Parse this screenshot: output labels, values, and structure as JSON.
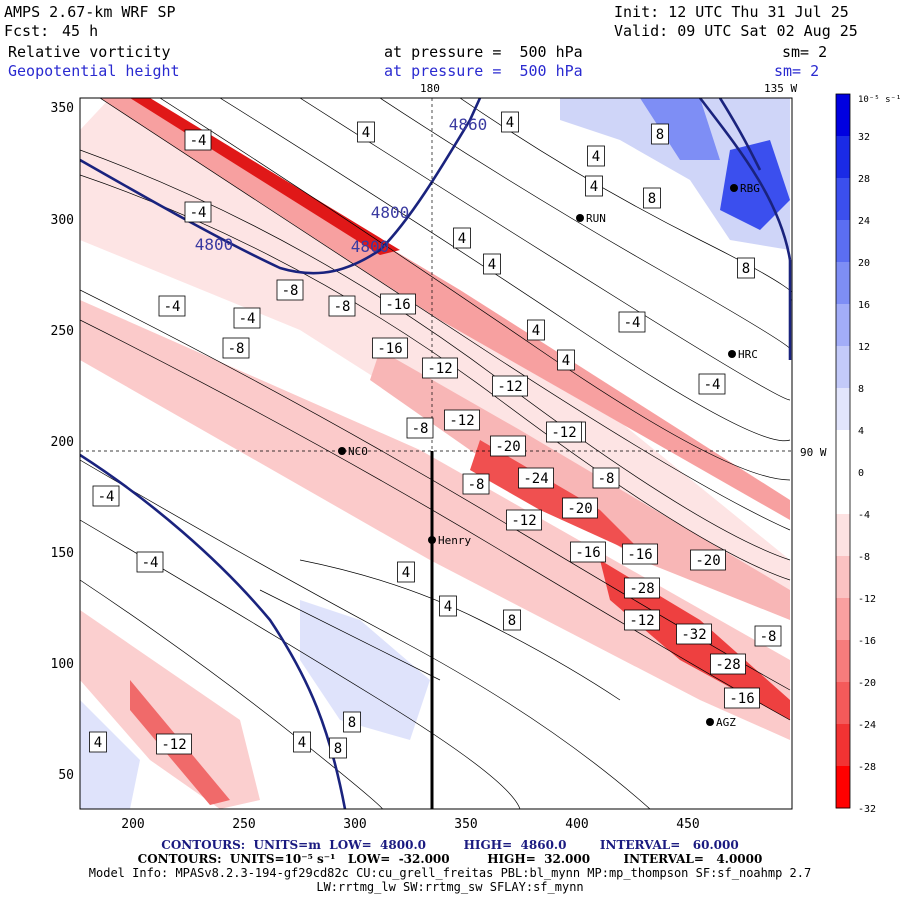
{
  "header": {
    "model": "AMPS 2.67-km WRF SP",
    "init": "Init: 12 UTC Thu 31 Jul 25",
    "fcst_label": "Fcst:",
    "fcst_value": "45 h",
    "valid": "Valid: 09 UTC Sat 02 Aug 25",
    "field1": "Relative vorticity",
    "field1_pressure": "at pressure =  500 hPa",
    "field1_sm": "sm= 2",
    "field2": "Geopotential height",
    "field2_pressure": "at pressure =  500 hPa",
    "field2_sm": "sm= 2",
    "lon_180": "180",
    "lon_135w": "135 W",
    "lon_90w": "90 W"
  },
  "axes": {
    "x_ticks": [
      "200",
      "250",
      "300",
      "350",
      "400",
      "450"
    ],
    "y_ticks": [
      "350",
      "300",
      "250",
      "200",
      "150",
      "100",
      "50"
    ]
  },
  "stations": [
    {
      "name": "RUN"
    },
    {
      "name": "RBG"
    },
    {
      "name": "HRC"
    },
    {
      "name": "NCO"
    },
    {
      "name": "Henry"
    },
    {
      "name": "AGZ"
    }
  ],
  "height_contours": {
    "labels": [
      "4800",
      "4800",
      "4860",
      "4800"
    ]
  },
  "vorticity_labels": [
    "-4",
    "-4",
    "-4",
    "-8",
    "-8",
    "-8",
    "-16",
    "-16",
    "-12",
    "-12",
    "-12",
    "-20",
    "-24",
    "-20",
    "-12",
    "-8",
    "-8",
    "-12",
    "-16",
    "-16",
    "-20",
    "-28",
    "-32",
    "-28",
    "-16",
    "-12",
    "-8",
    "-4",
    "-4",
    "-4",
    "-4",
    "-4",
    "-12",
    "-12",
    "-8",
    "4",
    "4",
    "4",
    "4",
    "4",
    "4",
    "4",
    "4",
    "8",
    "8",
    "8",
    "8",
    "8",
    "8",
    "4",
    "4",
    "4",
    "4"
  ],
  "colorbar": {
    "unit": "10⁻⁵ s⁻¹",
    "ticks": [
      "32",
      "28",
      "24",
      "20",
      "16",
      "12",
      "8",
      "4",
      "0",
      "-4",
      "-8",
      "-12",
      "-16",
      "-20",
      "-24",
      "-28",
      "-32"
    ],
    "colors": [
      "#0000e0",
      "#1a2ae6",
      "#3b4fee",
      "#5b6ef2",
      "#7e8ef5",
      "#a2adf8",
      "#c3caf9",
      "#e2e5fc",
      "#ffffff",
      "#ffffff",
      "#fde2e2",
      "#fbc2c2",
      "#f9a0a0",
      "#f77c7c",
      "#f45a5a",
      "#f23333",
      "#ff0000"
    ]
  },
  "footer": {
    "line1": "CONTOURS:  UNITS=m  LOW=  4800.0         HIGH=  4860.0        INTERVAL=   60.000",
    "line2": "CONTOURS:  UNITS=10⁻⁵ s⁻¹   LOW=  -32.000         HIGH=  32.000        INTERVAL=   4.0000",
    "line3": "Model Info: MPASv8.2.3-194-gf29cd82c CU:cu_grell_freitas PBL:bl_mynn MP:mp_thompson SF:sf_noahmp 2.7",
    "line4": "LW:rrtmg_lw SW:rrtmg_sw SFLAY:sf_mynn"
  }
}
